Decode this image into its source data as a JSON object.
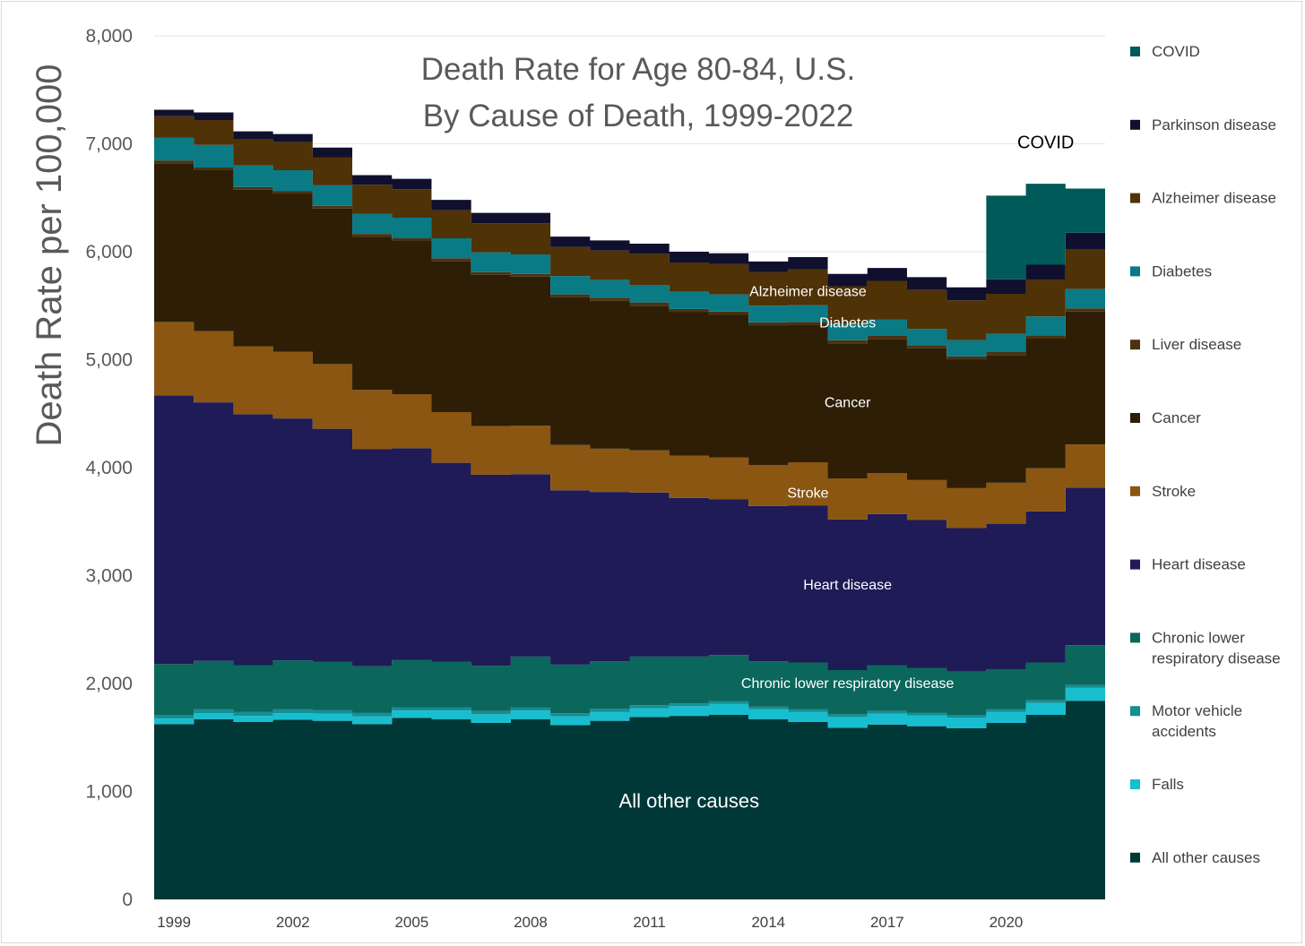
{
  "chart_data": {
    "type": "area",
    "stacked": true,
    "step": true,
    "title": "Death Rate for Age 80-84, U.S.",
    "subtitle": "By Cause of Death, 1999-2022",
    "ylabel": "Death Rate per 100,000",
    "xlabel": "",
    "ylim": [
      0,
      8000
    ],
    "y_ticks": [
      0,
      1000,
      2000,
      3000,
      4000,
      5000,
      6000,
      7000,
      8000
    ],
    "y_tick_labels": [
      "0",
      "1,000",
      "2,000",
      "3,000",
      "4,000",
      "5,000",
      "6,000",
      "7,000",
      "8,000"
    ],
    "x": [
      1999,
      2000,
      2001,
      2002,
      2003,
      2004,
      2005,
      2006,
      2007,
      2008,
      2009,
      2010,
      2011,
      2012,
      2013,
      2014,
      2015,
      2016,
      2017,
      2018,
      2019,
      2020,
      2021,
      2022
    ],
    "x_tick_labels": [
      "1999",
      "2002",
      "2005",
      "2008",
      "2011",
      "2014",
      "2017",
      "2020"
    ],
    "x_tick_years": [
      1999,
      2002,
      2005,
      2008,
      2011,
      2014,
      2017,
      2020
    ],
    "grid": "horizontal",
    "legend_position": "right",
    "series": [
      {
        "name": "All other causes",
        "color": "#003838",
        "values": [
          1625,
          1670,
          1645,
          1665,
          1655,
          1625,
          1680,
          1670,
          1635,
          1670,
          1615,
          1655,
          1690,
          1700,
          1710,
          1670,
          1645,
          1590,
          1620,
          1605,
          1585,
          1635,
          1710,
          1840
        ]
      },
      {
        "name": "Falls",
        "color": "#17becf",
        "values": [
          50,
          55,
          55,
          60,
          65,
          70,
          70,
          80,
          80,
          80,
          80,
          80,
          80,
          90,
          100,
          90,
          90,
          100,
          100,
          100,
          100,
          100,
          110,
          120
        ]
      },
      {
        "name": "Motor vehicle accidents",
        "color": "#138f95",
        "values": [
          35,
          35,
          35,
          35,
          35,
          35,
          30,
          30,
          30,
          30,
          30,
          30,
          30,
          25,
          25,
          25,
          25,
          25,
          25,
          25,
          25,
          25,
          25,
          25
        ]
      },
      {
        "name": "Chronic lower respiratory disease",
        "color": "#0b665c",
        "values": [
          470,
          450,
          435,
          455,
          445,
          430,
          440,
          420,
          420,
          470,
          450,
          440,
          450,
          435,
          430,
          420,
          435,
          410,
          425,
          415,
          400,
          370,
          350,
          370
        ]
      },
      {
        "name": "Heart disease",
        "color": "#1e1b56",
        "values": [
          2490,
          2395,
          2325,
          2240,
          2160,
          2010,
          1960,
          1845,
          1770,
          1690,
          1615,
          1570,
          1520,
          1470,
          1440,
          1440,
          1455,
          1395,
          1400,
          1370,
          1330,
          1350,
          1400,
          1460
        ]
      },
      {
        "name": "Stroke",
        "color": "#8a5611",
        "values": [
          680,
          660,
          630,
          620,
          600,
          550,
          500,
          470,
          450,
          450,
          420,
          400,
          390,
          390,
          390,
          380,
          400,
          380,
          380,
          370,
          370,
          380,
          400,
          400
        ]
      },
      {
        "name": "Cancer",
        "color": "#2d1e05",
        "values": [
          1470,
          1490,
          1450,
          1460,
          1440,
          1420,
          1420,
          1400,
          1400,
          1380,
          1370,
          1370,
          1340,
          1330,
          1320,
          1290,
          1270,
          1250,
          1240,
          1220,
          1190,
          1180,
          1200,
          1230
        ]
      },
      {
        "name": "Liver disease",
        "color": "#4a3212",
        "values": [
          25,
          25,
          25,
          25,
          25,
          25,
          25,
          25,
          25,
          25,
          25,
          30,
          30,
          30,
          30,
          30,
          30,
          30,
          30,
          30,
          30,
          30,
          30,
          30
        ]
      },
      {
        "name": "Diabetes",
        "color": "#0a7a85",
        "values": [
          210,
          210,
          200,
          195,
          190,
          185,
          190,
          185,
          185,
          180,
          170,
          165,
          160,
          160,
          160,
          155,
          155,
          150,
          150,
          150,
          150,
          170,
          175,
          180
        ]
      },
      {
        "name": "Alzheimer disease",
        "color": "#4f3206",
        "values": [
          200,
          230,
          240,
          260,
          260,
          270,
          265,
          260,
          270,
          290,
          270,
          270,
          290,
          270,
          280,
          310,
          330,
          350,
          360,
          360,
          370,
          370,
          340,
          370
        ]
      },
      {
        "name": "Parkinson disease",
        "color": "#10102e",
        "values": [
          60,
          70,
          75,
          75,
          90,
          90,
          95,
          95,
          95,
          95,
          95,
          95,
          95,
          100,
          100,
          100,
          115,
          115,
          120,
          120,
          120,
          135,
          140,
          150
        ]
      },
      {
        "name": "COVID",
        "color": "#005a5a",
        "values": [
          0,
          0,
          0,
          0,
          0,
          0,
          0,
          0,
          0,
          0,
          0,
          0,
          0,
          0,
          0,
          0,
          0,
          0,
          0,
          0,
          0,
          775,
          750,
          410
        ]
      }
    ],
    "annotations": [
      {
        "text": "All other causes",
        "x": 2012,
        "y": 850
      },
      {
        "text": "Chronic lower respiratory disease",
        "x": 2016,
        "y": 1960
      },
      {
        "text": "Heart disease",
        "x": 2016,
        "y": 2870
      },
      {
        "text": "Stroke",
        "x": 2015.5,
        "y": 3720
      },
      {
        "text": "Cancer",
        "x": 2016,
        "y": 4560
      },
      {
        "text": "Diabetes",
        "x": 2016,
        "y": 5300
      },
      {
        "text": "Alzheimer disease",
        "x": 2015.5,
        "y": 5590
      },
      {
        "text": "COVID",
        "x": 2021,
        "y": 6960
      }
    ]
  }
}
